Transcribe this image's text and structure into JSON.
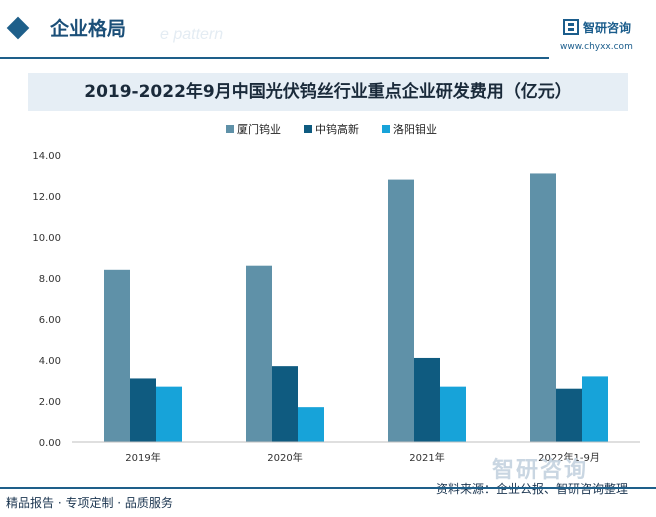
{
  "header": {
    "section_title": "企业格局",
    "ghost_text": "e pattern",
    "logo_text": "智研咨询",
    "logo_url": "www.chyxx.com"
  },
  "footer": {
    "left_text": "精品报告 · 专项定制 · 品质服务",
    "right_text": "资料来源：企业公报、智研咨询整理",
    "watermark_brand": "智研咨询"
  },
  "colors": {
    "accent": "#1e5f8a",
    "title_bg": "#e6eef5"
  },
  "chart_data": {
    "type": "bar",
    "title": "2019-2022年9月中国光伏钨丝行业重点企业研发费用（亿元）",
    "categories": [
      "2019年",
      "2020年",
      "2021年",
      "2022年1-9月"
    ],
    "series": [
      {
        "name": "厦门钨业",
        "color": "#5f91a8",
        "values": [
          8.4,
          8.6,
          12.8,
          13.1
        ]
      },
      {
        "name": "中钨高新",
        "color": "#0f5b80",
        "values": [
          3.1,
          3.7,
          4.1,
          2.6
        ]
      },
      {
        "name": "洛阳钼业",
        "color": "#17a3d9",
        "values": [
          2.7,
          1.7,
          2.7,
          3.2
        ]
      }
    ],
    "ylim": [
      0,
      14
    ],
    "yticks": [
      "0.00",
      "2.00",
      "4.00",
      "6.00",
      "8.00",
      "10.00",
      "12.00",
      "14.00"
    ],
    "xlabel": "",
    "ylabel": "",
    "legend": "top-center"
  }
}
